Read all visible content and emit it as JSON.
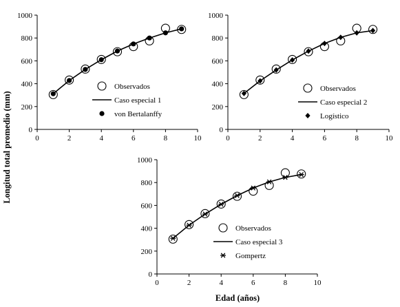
{
  "axis_titles": {
    "y": "Longitud total promedio (mm)",
    "x": "Edad (años)"
  },
  "chart_data": [
    {
      "type": "scatter",
      "xlim": [
        0,
        10
      ],
      "ylim": [
        0,
        1000
      ],
      "x_ticks": [
        0,
        2,
        4,
        6,
        8,
        10
      ],
      "y_ticks": [
        0,
        200,
        400,
        600,
        800,
        1000
      ],
      "grid": false,
      "legend_position": "bottom-right",
      "series": [
        {
          "name": "Observados",
          "kind": "open-circle",
          "x": [
            1,
            2,
            3,
            4,
            5,
            6,
            7,
            8,
            9
          ],
          "y": [
            305,
            432,
            528,
            612,
            680,
            725,
            775,
            885,
            875
          ]
        },
        {
          "name": "Caso especial  1",
          "kind": "line",
          "x": [
            1,
            2,
            3,
            4,
            5,
            6,
            7,
            8,
            9
          ],
          "y": [
            312,
            428,
            525,
            610,
            686,
            748,
            800,
            845,
            880
          ]
        },
        {
          "name": "von Bertalanffy",
          "kind": "filled-circle",
          "x": [
            1,
            2,
            3,
            4,
            5,
            6,
            7,
            8,
            9
          ],
          "y": [
            312,
            428,
            525,
            610,
            686,
            748,
            800,
            845,
            880
          ]
        }
      ]
    },
    {
      "type": "scatter",
      "xlim": [
        0,
        10
      ],
      "ylim": [
        0,
        1000
      ],
      "x_ticks": [
        0,
        2,
        4,
        6,
        8,
        10
      ],
      "y_ticks": [
        0,
        200,
        400,
        600,
        800,
        1000
      ],
      "grid": false,
      "legend_position": "bottom-right",
      "series": [
        {
          "name": "Observados",
          "kind": "open-circle",
          "x": [
            1,
            2,
            3,
            4,
            5,
            6,
            7,
            8,
            9
          ],
          "y": [
            305,
            432,
            528,
            612,
            680,
            725,
            775,
            885,
            875
          ]
        },
        {
          "name": "Caso especial 2",
          "kind": "line",
          "x": [
            1,
            2,
            3,
            4,
            5,
            6,
            7,
            8,
            9
          ],
          "y": [
            315,
            425,
            520,
            608,
            685,
            752,
            806,
            845,
            865
          ]
        },
        {
          "name": "Logístico",
          "kind": "filled-diamond",
          "x": [
            1,
            2,
            3,
            4,
            5,
            6,
            7,
            8,
            9
          ],
          "y": [
            315,
            425,
            520,
            608,
            685,
            752,
            806,
            845,
            865
          ]
        }
      ]
    },
    {
      "type": "scatter",
      "xlim": [
        0,
        10
      ],
      "ylim": [
        0,
        1000
      ],
      "x_ticks": [
        0,
        2,
        4,
        6,
        8,
        10
      ],
      "y_ticks": [
        0,
        200,
        400,
        600,
        800,
        1000
      ],
      "grid": false,
      "legend_position": "bottom-right",
      "series": [
        {
          "name": "Observados",
          "kind": "open-circle",
          "x": [
            1,
            2,
            3,
            4,
            5,
            6,
            7,
            8,
            9
          ],
          "y": [
            305,
            432,
            528,
            612,
            680,
            725,
            775,
            885,
            875
          ]
        },
        {
          "name": "Caso especial 3",
          "kind": "line",
          "x": [
            1,
            2,
            3,
            4,
            5,
            6,
            7,
            8,
            9
          ],
          "y": [
            312,
            427,
            524,
            610,
            686,
            752,
            806,
            845,
            870
          ]
        },
        {
          "name": "Gompertz",
          "kind": "asterisk",
          "x": [
            1,
            2,
            3,
            4,
            5,
            6,
            7,
            8,
            9
          ],
          "y": [
            312,
            427,
            524,
            610,
            686,
            752,
            806,
            845,
            870
          ]
        }
      ]
    }
  ]
}
